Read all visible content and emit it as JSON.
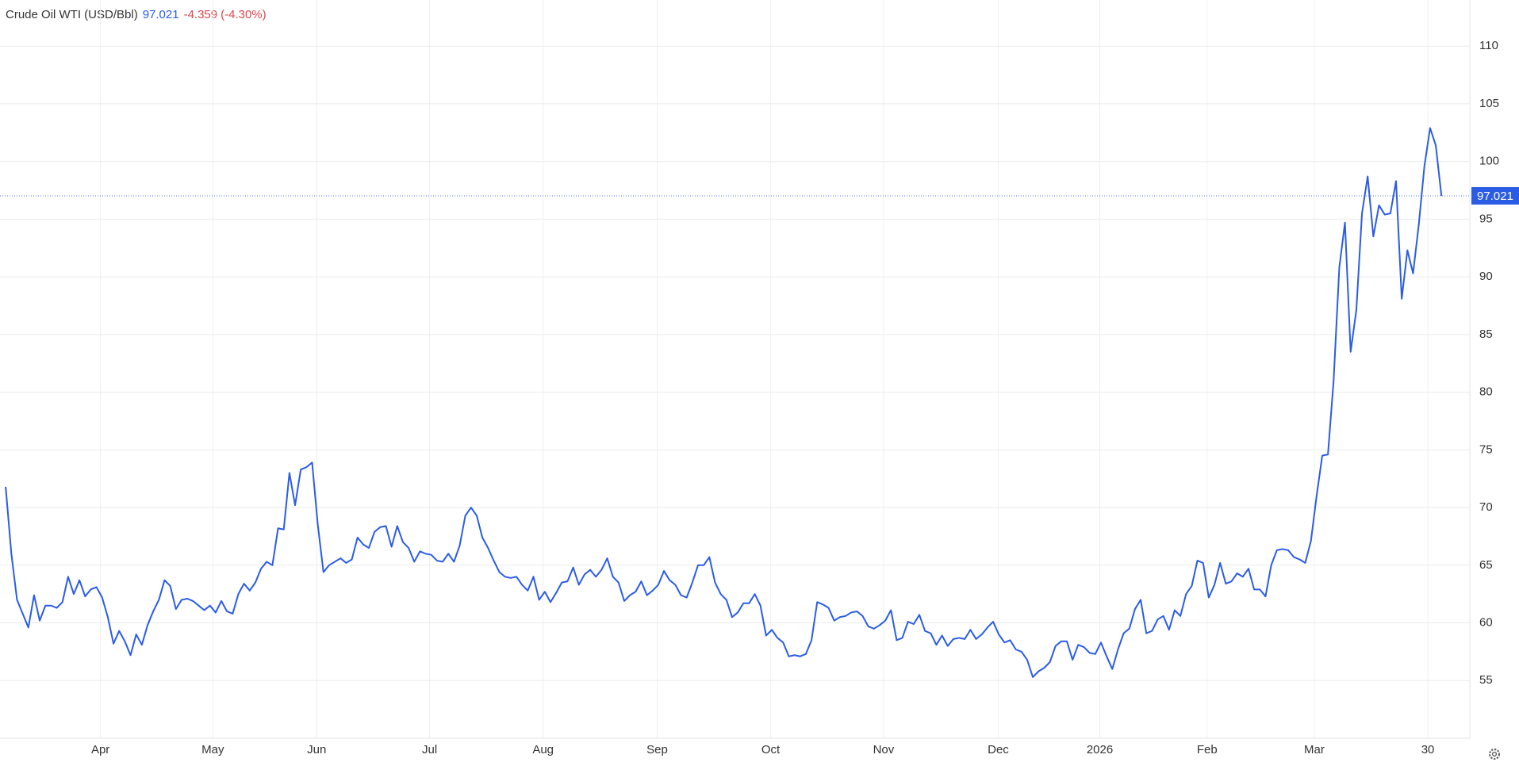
{
  "chart_data": {
    "type": "line",
    "title": "Crude Oil WTI (USD/Bbl)",
    "last_value": "97.021",
    "change": "-4.359",
    "change_percent": "(-4.30%)",
    "change_color": "#e0474c",
    "grid": true,
    "xlim": [
      -1,
      258
    ],
    "xticks": [
      {
        "value": 16.7,
        "label": "Apr"
      },
      {
        "value": 36.5,
        "label": "May"
      },
      {
        "value": 54.8,
        "label": "Jun"
      },
      {
        "value": 74.7,
        "label": "Jul"
      },
      {
        "value": 94.7,
        "label": "Aug"
      },
      {
        "value": 114.8,
        "label": "Sep"
      },
      {
        "value": 134.8,
        "label": "Oct"
      },
      {
        "value": 154.7,
        "label": "Nov"
      },
      {
        "value": 174.9,
        "label": "Dec"
      },
      {
        "value": 192.8,
        "label": "2026"
      },
      {
        "value": 211.7,
        "label": "Feb"
      },
      {
        "value": 230.6,
        "label": "Mar"
      },
      {
        "value": 250.6,
        "label": "30"
      }
    ],
    "ylim": [
      50,
      114
    ],
    "yticks": [
      55,
      60,
      65,
      70,
      75,
      80,
      85,
      90,
      95,
      100,
      105,
      110
    ],
    "series": [
      {
        "name": "Crude Oil WTI",
        "color": "#2b5ce6",
        "values": [
          71.8,
          66,
          62,
          60.8,
          59.6,
          62.4,
          60.2,
          61.5,
          61.5,
          61.3,
          61.8,
          64,
          62.5,
          63.7,
          62.3,
          62.9,
          63.1,
          62.2,
          60.5,
          58.2,
          59.3,
          58.4,
          57.2,
          59,
          58.1,
          59.8,
          61,
          62,
          63.7,
          63.2,
          61.2,
          62,
          62.1,
          61.9,
          61.5,
          61.1,
          61.5,
          60.9,
          61.9,
          61,
          60.8,
          62.5,
          63.4,
          62.8,
          63.5,
          64.7,
          65.3,
          65,
          68.2,
          68.1,
          73,
          70.2,
          73.3,
          73.5,
          73.9,
          68.5,
          64.4,
          65,
          65.3,
          65.6,
          65.2,
          65.5,
          67.4,
          66.8,
          66.5,
          67.9,
          68.3,
          68.4,
          66.6,
          68.4,
          67,
          66.5,
          65.3,
          66.2,
          66,
          65.9,
          65.4,
          65.3,
          66,
          65.3,
          66.7,
          69.3,
          70,
          69.3,
          67.4,
          66.5,
          65.4,
          64.4,
          64,
          63.9,
          64,
          63.3,
          62.8,
          64,
          62,
          62.7,
          61.8,
          62.6,
          63.5,
          63.6,
          64.8,
          63.3,
          64.2,
          64.6,
          64,
          64.6,
          65.6,
          64,
          63.5,
          61.9,
          62.4,
          62.7,
          63.6,
          62.4,
          62.8,
          63.3,
          64.5,
          63.7,
          63.3,
          62.4,
          62.2,
          63.5,
          65,
          65,
          65.7,
          63.5,
          62.5,
          62,
          60.5,
          60.9,
          61.7,
          61.7,
          62.5,
          61.5,
          58.9,
          59.4,
          58.7,
          58.3,
          57.1,
          57.2,
          57.1,
          57.3,
          58.5,
          61.8,
          61.6,
          61.3,
          60.2,
          60.5,
          60.6,
          60.9,
          61,
          60.6,
          59.7,
          59.5,
          59.8,
          60.2,
          61.1,
          58.5,
          58.7,
          60.1,
          59.9,
          60.7,
          59.3,
          59.1,
          58.1,
          58.9,
          58,
          58.6,
          58.7,
          58.6,
          59.4,
          58.6,
          59,
          59.6,
          60.1,
          59,
          58.3,
          58.5,
          57.7,
          57.5,
          56.8,
          55.3,
          55.8,
          56.1,
          56.6,
          58,
          58.4,
          58.4,
          56.8,
          58.1,
          57.9,
          57.4,
          57.3,
          58.3,
          57.1,
          56,
          57.7,
          59.1,
          59.5,
          61.2,
          62,
          59.1,
          59.3,
          60.3,
          60.6,
          59.4,
          61.1,
          60.6,
          62.5,
          63.2,
          65.4,
          65.2,
          62.2,
          63.3,
          65.2,
          63.4,
          63.6,
          64.3,
          64,
          64.7,
          62.9,
          62.9,
          62.3,
          65,
          66.3,
          66.4,
          66.3,
          65.7,
          65.5,
          65.2,
          67.1,
          71,
          74.5,
          74.6,
          81,
          90.8,
          94.7,
          83.5,
          87.1,
          95.5,
          98.7,
          93.5,
          96.2,
          95.4,
          95.5,
          98.3,
          88.1,
          92.3,
          90.3,
          94.5,
          99.6,
          102.9,
          101.4,
          97.021
        ]
      }
    ]
  }
}
